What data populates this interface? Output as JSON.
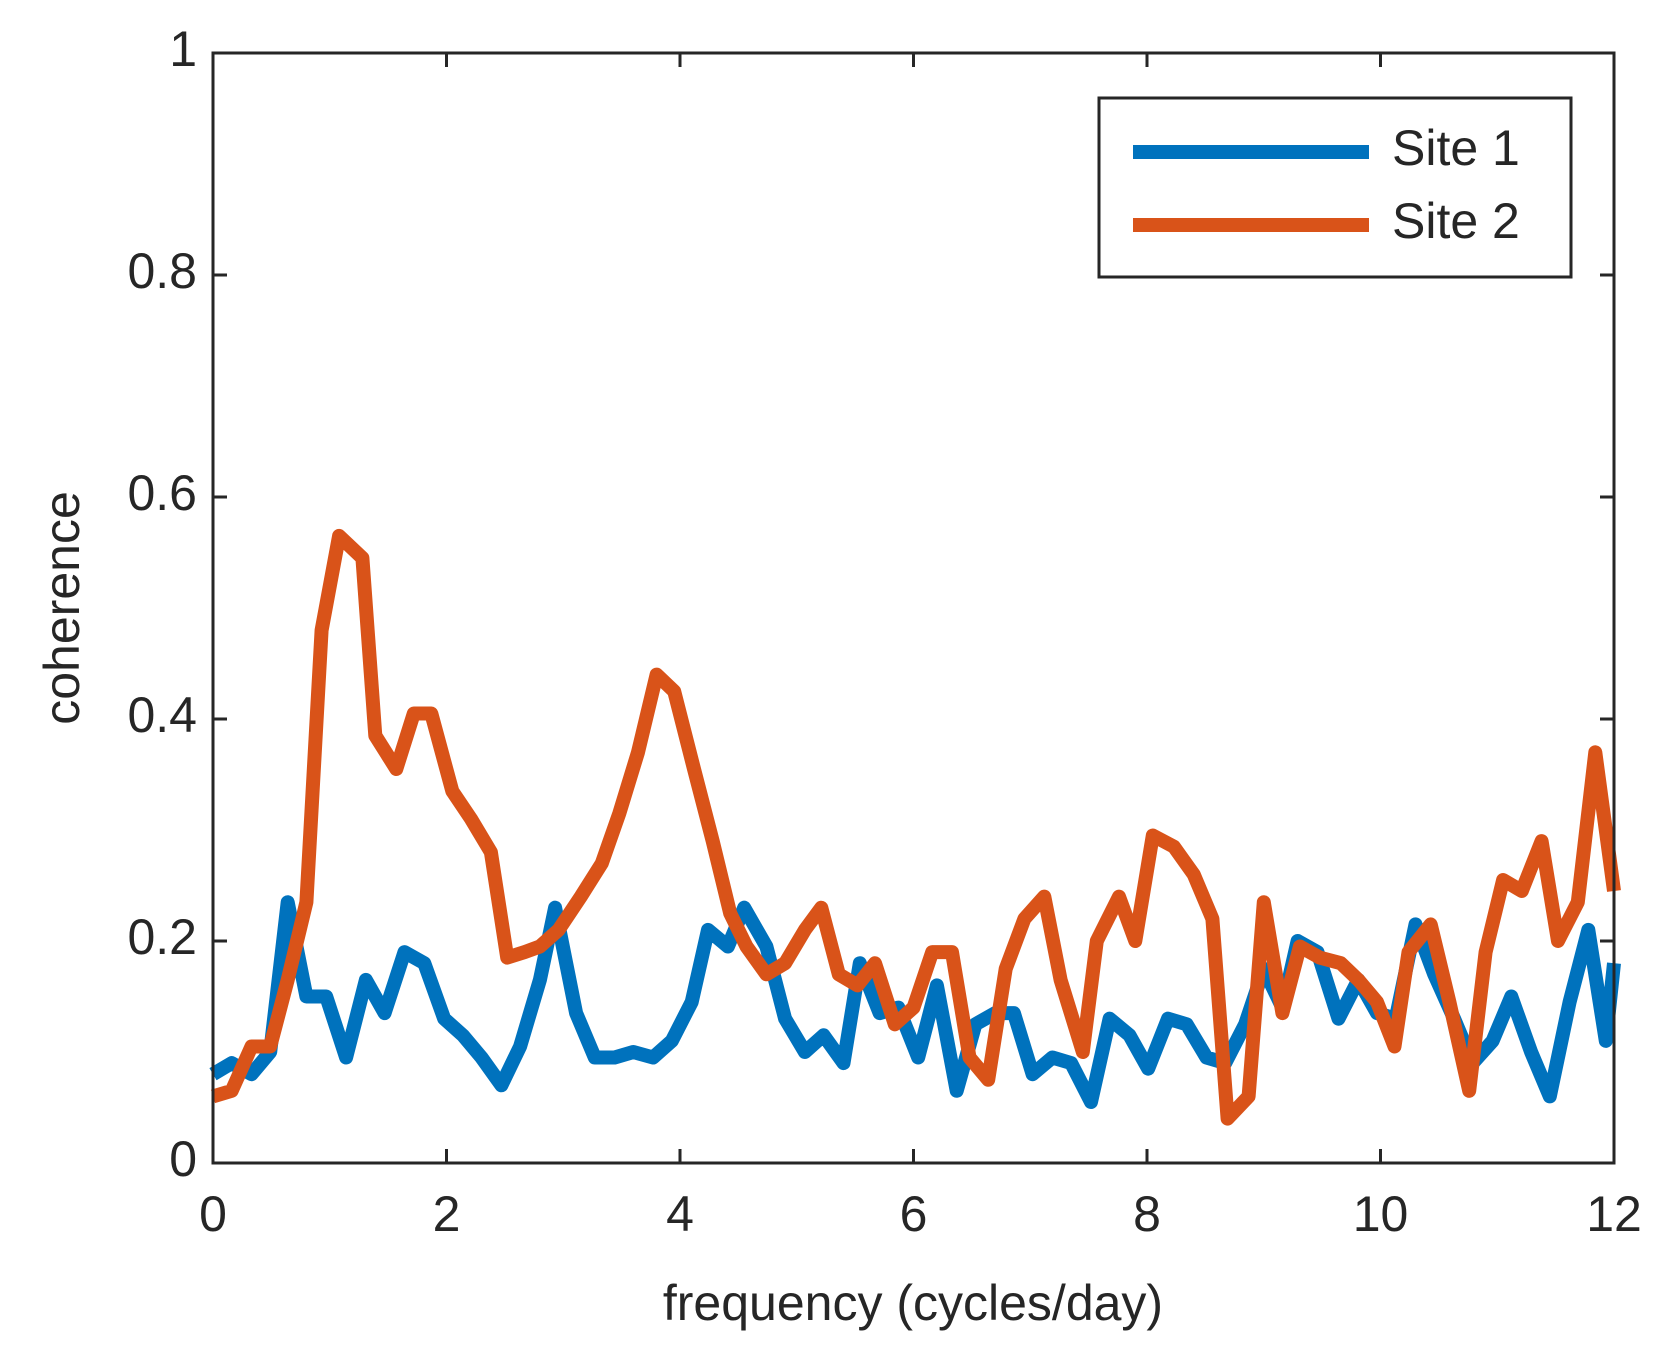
{
  "chart_data": {
    "type": "line",
    "xlabel": "frequency (cycles/day)",
    "ylabel": "coherence",
    "xlim": [
      0,
      12
    ],
    "xticks": [
      0,
      2,
      4,
      6,
      8,
      10,
      12
    ],
    "ylim": [
      0,
      1
    ],
    "yticks": [
      0,
      0.2,
      0.4,
      0.6,
      0.8,
      1
    ],
    "legend": "upper right",
    "grid": false,
    "series": [
      {
        "name": "Site 1",
        "color": "#0072bd",
        "x": [
          0,
          0.16,
          0.33,
          0.49,
          0.64,
          0.8,
          0.97,
          1.14,
          1.31,
          1.47,
          1.64,
          1.81,
          1.98,
          2.14,
          2.3,
          2.47,
          2.63,
          2.8,
          2.93,
          3.11,
          3.27,
          3.44,
          3.6,
          3.77,
          3.93,
          4.1,
          4.24,
          4.41,
          4.55,
          4.74,
          4.9,
          5.07,
          5.23,
          5.4,
          5.54,
          5.71,
          5.87,
          6.04,
          6.2,
          6.37,
          6.53,
          6.7,
          6.86,
          7.02,
          7.19,
          7.35,
          7.52,
          7.68,
          7.85,
          8.01,
          8.18,
          8.34,
          8.51,
          8.67,
          8.84,
          9.0,
          9.16,
          9.29,
          9.46,
          9.64,
          9.81,
          9.97,
          10.13,
          10.3,
          10.46,
          10.63,
          10.79,
          10.96,
          11.12,
          11.29,
          11.45,
          11.62,
          11.78,
          11.93,
          12
        ],
        "values": [
          0.08,
          0.09,
          0.08,
          0.1,
          0.235,
          0.15,
          0.15,
          0.095,
          0.165,
          0.135,
          0.19,
          0.18,
          0.13,
          0.115,
          0.095,
          0.07,
          0.105,
          0.165,
          0.23,
          0.135,
          0.095,
          0.095,
          0.1,
          0.095,
          0.11,
          0.145,
          0.21,
          0.195,
          0.23,
          0.195,
          0.13,
          0.1,
          0.115,
          0.09,
          0.18,
          0.135,
          0.14,
          0.095,
          0.16,
          0.065,
          0.125,
          0.135,
          0.135,
          0.08,
          0.095,
          0.09,
          0.055,
          0.13,
          0.115,
          0.085,
          0.13,
          0.125,
          0.095,
          0.09,
          0.125,
          0.175,
          0.14,
          0.2,
          0.19,
          0.13,
          0.165,
          0.135,
          0.13,
          0.215,
          0.17,
          0.13,
          0.09,
          0.11,
          0.15,
          0.1,
          0.06,
          0.145,
          0.21,
          0.11,
          0.18
        ]
      },
      {
        "name": "Site 2",
        "color": "#d95319",
        "x": [
          0,
          0.16,
          0.33,
          0.49,
          0.64,
          0.8,
          0.93,
          1.08,
          1.28,
          1.39,
          1.57,
          1.72,
          1.87,
          2.05,
          2.21,
          2.38,
          2.52,
          2.67,
          2.8,
          2.96,
          3.15,
          3.33,
          3.48,
          3.64,
          3.8,
          3.95,
          4.12,
          4.28,
          4.43,
          4.57,
          4.74,
          4.9,
          5.07,
          5.21,
          5.36,
          5.52,
          5.67,
          5.84,
          6.0,
          6.16,
          6.33,
          6.48,
          6.64,
          6.79,
          6.95,
          7.12,
          7.26,
          7.45,
          7.57,
          7.76,
          7.9,
          8.05,
          8.23,
          8.4,
          8.56,
          8.69,
          8.87,
          9.0,
          9.16,
          9.31,
          9.48,
          9.66,
          9.81,
          9.97,
          10.12,
          10.24,
          10.43,
          10.59,
          10.76,
          10.9,
          11.05,
          11.21,
          11.38,
          11.52,
          11.69,
          11.84,
          12
        ],
        "values": [
          0.06,
          0.065,
          0.105,
          0.105,
          0.165,
          0.235,
          0.48,
          0.565,
          0.545,
          0.385,
          0.355,
          0.405,
          0.405,
          0.335,
          0.31,
          0.28,
          0.185,
          0.19,
          0.195,
          0.21,
          0.24,
          0.27,
          0.315,
          0.37,
          0.44,
          0.425,
          0.355,
          0.29,
          0.225,
          0.195,
          0.17,
          0.18,
          0.21,
          0.23,
          0.17,
          0.16,
          0.18,
          0.125,
          0.14,
          0.19,
          0.19,
          0.095,
          0.075,
          0.175,
          0.22,
          0.24,
          0.165,
          0.1,
          0.2,
          0.24,
          0.2,
          0.295,
          0.285,
          0.26,
          0.22,
          0.04,
          0.06,
          0.235,
          0.135,
          0.195,
          0.185,
          0.18,
          0.165,
          0.145,
          0.105,
          0.19,
          0.215,
          0.145,
          0.065,
          0.19,
          0.255,
          0.245,
          0.29,
          0.2,
          0.235,
          0.37,
          0.245
        ]
      }
    ]
  }
}
